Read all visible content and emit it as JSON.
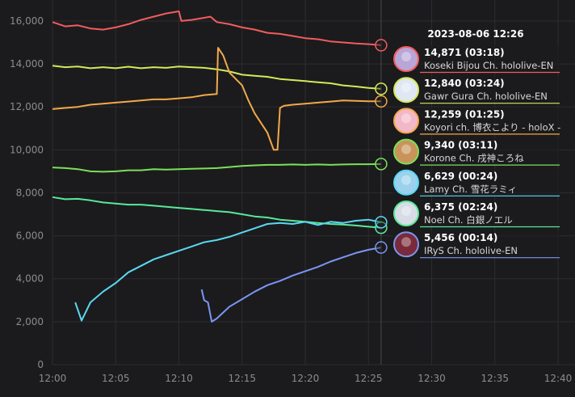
{
  "chart_data": {
    "type": "line",
    "x_unit": "time",
    "x_ticks": [
      "12:00",
      "12:05",
      "12:10",
      "12:15",
      "12:20",
      "12:25",
      "12:30",
      "12:35",
      "12:40"
    ],
    "xlim": [
      "12:00",
      "12:41"
    ],
    "ylim": [
      0,
      16600
    ],
    "y_ticks": [
      0,
      2000,
      4000,
      6000,
      8000,
      10000,
      12000,
      14000,
      16000
    ],
    "y_tick_labels": [
      "0",
      "2,000",
      "4,000",
      "6,000",
      "8,000",
      "10,000",
      "12,000",
      "14,000",
      "16,000"
    ],
    "grid": true,
    "cursor_time": "12:26",
    "tooltip": {
      "title": "2023-08-06 12:26",
      "entries": [
        {
          "value": "14,871 (03:18)",
          "name": "Koseki Bijou Ch. hololive-EN",
          "color": "#f25c5c",
          "avatar_bg": "#b8a6d8"
        },
        {
          "value": "12,840 (03:24)",
          "name": "Gawr Gura Ch. hololive-EN",
          "color": "#d6e85a",
          "avatar_bg": "#dfe8f2"
        },
        {
          "value": "12,259 (01:25)",
          "name": "Koyori ch. 博衣こより - holoX -",
          "color": "#f2a94a",
          "avatar_bg": "#f2b8c8"
        },
        {
          "value": "9,340 (03:11)",
          "name": "Korone Ch. 戌神ころね",
          "color": "#7be05a",
          "avatar_bg": "#c8945a"
        },
        {
          "value": "6,629 (00:24)",
          "name": "Lamy Ch. 雪花ラミィ",
          "color": "#5ad8f2",
          "avatar_bg": "#9ad2ee"
        },
        {
          "value": "6,375 (02:24)",
          "name": "Noel Ch. 白銀ノエル",
          "color": "#5ae89a",
          "avatar_bg": "#d8dce6"
        },
        {
          "value": "5,456 (00:14)",
          "name": "IRyS Ch. hololive-EN",
          "color": "#7a96f2",
          "avatar_bg": "#7a2a3a"
        }
      ]
    },
    "series": [
      {
        "name": "Koseki Bijou Ch. hololive-EN",
        "color": "#f25c5c",
        "points": [
          [
            "12:00",
            15950
          ],
          [
            "12:01",
            15750
          ],
          [
            "12:02",
            15800
          ],
          [
            "12:03",
            15650
          ],
          [
            "12:04",
            15600
          ],
          [
            "12:05",
            15700
          ],
          [
            "12:06",
            15850
          ],
          [
            "12:07",
            16050
          ],
          [
            "12:08",
            16200
          ],
          [
            "12:09",
            16350
          ],
          [
            "12:10",
            16450
          ],
          [
            "12:10.2",
            16000
          ],
          [
            "12:11",
            16050
          ],
          [
            "12:12",
            16150
          ],
          [
            "12:12.5",
            16200
          ],
          [
            "12:13",
            15950
          ],
          [
            "12:14",
            15850
          ],
          [
            "12:15",
            15700
          ],
          [
            "12:16",
            15600
          ],
          [
            "12:17",
            15450
          ],
          [
            "12:18",
            15400
          ],
          [
            "12:19",
            15300
          ],
          [
            "12:20",
            15200
          ],
          [
            "12:21",
            15150
          ],
          [
            "12:22",
            15050
          ],
          [
            "12:23",
            15000
          ],
          [
            "12:24",
            14950
          ],
          [
            "12:25",
            14920
          ],
          [
            "12:26",
            14871
          ]
        ]
      },
      {
        "name": "Gawr Gura Ch. hololive-EN",
        "color": "#d6e85a",
        "points": [
          [
            "12:00",
            13920
          ],
          [
            "12:01",
            13850
          ],
          [
            "12:02",
            13880
          ],
          [
            "12:03",
            13800
          ],
          [
            "12:04",
            13850
          ],
          [
            "12:05",
            13800
          ],
          [
            "12:06",
            13870
          ],
          [
            "12:07",
            13800
          ],
          [
            "12:08",
            13850
          ],
          [
            "12:09",
            13820
          ],
          [
            "12:10",
            13880
          ],
          [
            "12:11",
            13850
          ],
          [
            "12:12",
            13820
          ],
          [
            "12:13",
            13750
          ],
          [
            "12:14",
            13650
          ],
          [
            "12:15",
            13500
          ],
          [
            "12:16",
            13450
          ],
          [
            "12:17",
            13400
          ],
          [
            "12:18",
            13300
          ],
          [
            "12:19",
            13250
          ],
          [
            "12:20",
            13200
          ],
          [
            "12:21",
            13150
          ],
          [
            "12:22",
            13100
          ],
          [
            "12:23",
            13000
          ],
          [
            "12:24",
            12950
          ],
          [
            "12:25",
            12880
          ],
          [
            "12:26",
            12840
          ]
        ]
      },
      {
        "name": "Koyori ch. 博衣こより - holoX -",
        "color": "#f2a94a",
        "points": [
          [
            "12:00",
            11900
          ],
          [
            "12:01",
            11950
          ],
          [
            "12:02",
            12000
          ],
          [
            "12:03",
            12100
          ],
          [
            "12:04",
            12150
          ],
          [
            "12:05",
            12200
          ],
          [
            "12:06",
            12250
          ],
          [
            "12:07",
            12300
          ],
          [
            "12:08",
            12350
          ],
          [
            "12:09",
            12350
          ],
          [
            "12:10",
            12400
          ],
          [
            "12:11",
            12450
          ],
          [
            "12:12",
            12550
          ],
          [
            "12:13",
            12600
          ],
          [
            "12:13.1",
            14750
          ],
          [
            "12:13.5",
            14400
          ],
          [
            "12:14",
            13600
          ],
          [
            "12:15",
            13000
          ],
          [
            "12:15.5",
            12300
          ],
          [
            "12:16",
            11700
          ],
          [
            "12:17",
            10800
          ],
          [
            "12:17.5",
            10000
          ],
          [
            "12:17.8",
            10000
          ],
          [
            "12:18",
            11950
          ],
          [
            "12:18.3",
            12050
          ],
          [
            "12:19",
            12100
          ],
          [
            "12:20",
            12150
          ],
          [
            "12:21",
            12200
          ],
          [
            "12:22",
            12250
          ],
          [
            "12:23",
            12300
          ],
          [
            "12:24",
            12280
          ],
          [
            "12:25",
            12260
          ],
          [
            "12:26",
            12259
          ]
        ]
      },
      {
        "name": "Korone Ch. 戌神ころね",
        "color": "#7be05a",
        "points": [
          [
            "12:00",
            9180
          ],
          [
            "12:01",
            9150
          ],
          [
            "12:02",
            9100
          ],
          [
            "12:03",
            9000
          ],
          [
            "12:04",
            8980
          ],
          [
            "12:05",
            9000
          ],
          [
            "12:06",
            9050
          ],
          [
            "12:07",
            9050
          ],
          [
            "12:08",
            9100
          ],
          [
            "12:09",
            9080
          ],
          [
            "12:10",
            9100
          ],
          [
            "12:11",
            9120
          ],
          [
            "12:12",
            9130
          ],
          [
            "12:13",
            9150
          ],
          [
            "12:14",
            9200
          ],
          [
            "12:15",
            9250
          ],
          [
            "12:16",
            9280
          ],
          [
            "12:17",
            9300
          ],
          [
            "12:18",
            9300
          ],
          [
            "12:19",
            9320
          ],
          [
            "12:20",
            9300
          ],
          [
            "12:21",
            9320
          ],
          [
            "12:22",
            9300
          ],
          [
            "12:23",
            9320
          ],
          [
            "12:24",
            9330
          ],
          [
            "12:25",
            9330
          ],
          [
            "12:26",
            9340
          ]
        ]
      },
      {
        "name": "Noel Ch. 白銀ノエル",
        "color": "#5ae89a",
        "points": [
          [
            "12:00",
            7800
          ],
          [
            "12:01",
            7700
          ],
          [
            "12:02",
            7720
          ],
          [
            "12:03",
            7650
          ],
          [
            "12:04",
            7550
          ],
          [
            "12:05",
            7500
          ],
          [
            "12:06",
            7450
          ],
          [
            "12:07",
            7450
          ],
          [
            "12:08",
            7400
          ],
          [
            "12:09",
            7350
          ],
          [
            "12:10",
            7300
          ],
          [
            "12:11",
            7250
          ],
          [
            "12:12",
            7200
          ],
          [
            "12:13",
            7150
          ],
          [
            "12:14",
            7100
          ],
          [
            "12:15",
            7000
          ],
          [
            "12:16",
            6900
          ],
          [
            "12:17",
            6850
          ],
          [
            "12:18",
            6750
          ],
          [
            "12:19",
            6700
          ],
          [
            "12:20",
            6650
          ],
          [
            "12:21",
            6600
          ],
          [
            "12:22",
            6550
          ],
          [
            "12:23",
            6520
          ],
          [
            "12:24",
            6480
          ],
          [
            "12:25",
            6420
          ],
          [
            "12:26",
            6375
          ]
        ]
      },
      {
        "name": "Lamy Ch. 雪花ラミィ",
        "color": "#5ad8f2",
        "points": [
          [
            "12:01.8",
            2900
          ],
          [
            "12:02.3",
            2050
          ],
          [
            "12:03",
            2900
          ],
          [
            "12:04",
            3400
          ],
          [
            "12:05",
            3800
          ],
          [
            "12:06",
            4300
          ],
          [
            "12:07",
            4600
          ],
          [
            "12:08",
            4900
          ],
          [
            "12:09",
            5100
          ],
          [
            "12:10",
            5300
          ],
          [
            "12:11",
            5500
          ],
          [
            "12:12",
            5700
          ],
          [
            "12:13",
            5800
          ],
          [
            "12:14",
            5950
          ],
          [
            "12:15",
            6150
          ],
          [
            "12:16",
            6350
          ],
          [
            "12:17",
            6550
          ],
          [
            "12:18",
            6600
          ],
          [
            "12:19",
            6550
          ],
          [
            "12:20",
            6650
          ],
          [
            "12:21",
            6500
          ],
          [
            "12:22",
            6650
          ],
          [
            "12:23",
            6600
          ],
          [
            "12:24",
            6700
          ],
          [
            "12:25",
            6750
          ],
          [
            "12:26",
            6629
          ]
        ]
      },
      {
        "name": "IRyS Ch. hololive-EN",
        "color": "#7a96f2",
        "points": [
          [
            "12:11.8",
            3500
          ],
          [
            "12:12",
            3000
          ],
          [
            "12:12.3",
            2900
          ],
          [
            "12:12.6",
            2000
          ],
          [
            "12:13",
            2150
          ],
          [
            "12:14",
            2700
          ],
          [
            "12:15",
            3050
          ],
          [
            "12:16",
            3400
          ],
          [
            "12:17",
            3700
          ],
          [
            "12:18",
            3900
          ],
          [
            "12:19",
            4150
          ],
          [
            "12:20",
            4350
          ],
          [
            "12:21",
            4550
          ],
          [
            "12:22",
            4800
          ],
          [
            "12:23",
            5000
          ],
          [
            "12:24",
            5200
          ],
          [
            "12:25",
            5350
          ],
          [
            "12:26",
            5456
          ]
        ]
      }
    ]
  }
}
